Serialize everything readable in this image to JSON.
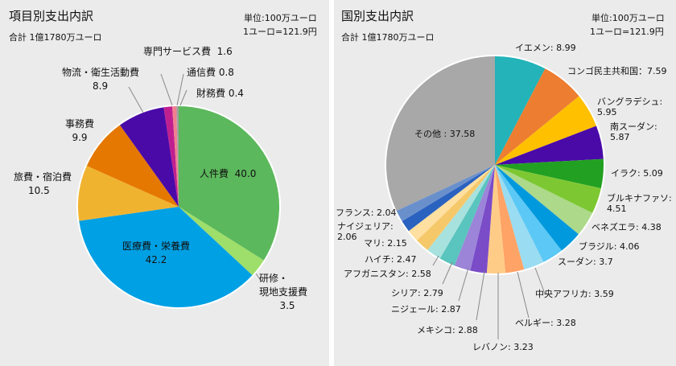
{
  "left": {
    "title": "項目別支出内訳",
    "total": "合計 1億1780万ユーロ",
    "unit": "単位:100万ユーロ",
    "rate": "1ユーロ=121.9円",
    "chart_data": {
      "type": "pie",
      "title": "項目別支出内訳",
      "start": "top",
      "direction": "clockwise",
      "slices": [
        {
          "label": "人件費",
          "value": 40.0,
          "color": "#5cb85c"
        },
        {
          "label": "研修・現地支援費",
          "value": 3.5,
          "color": "#9ede6a"
        },
        {
          "label": "医療費・栄養費",
          "value": 42.2,
          "color": "#00a0e4"
        },
        {
          "label": "旅費・宿泊費",
          "value": 10.5,
          "color": "#f0b330"
        },
        {
          "label": "事務費",
          "value": 9.9,
          "color": "#e57800"
        },
        {
          "label": "物流・衛生活動費",
          "value": 8.9,
          "color": "#4a0aa8"
        },
        {
          "label": "専門サービス費",
          "value": 1.6,
          "color": "#c0208f"
        },
        {
          "label": "通信費",
          "value": 0.8,
          "color": "#f08090"
        },
        {
          "label": "財務費",
          "value": 0.4,
          "color": "#a0a0a0"
        }
      ]
    },
    "labels": {
      "a": "人件費",
      "av": "40.0",
      "b1": "研修・",
      "b2": "現地支援費",
      "bv": "3.5",
      "c": "医療費・栄養費",
      "cv": "42.2",
      "d": "旅費・宿泊費",
      "dv": "10.5",
      "e": "事務費",
      "ev": "9.9",
      "f": "物流・衛生活動費",
      "fv": "8.9",
      "g": "専門サービス費",
      "gv": "1.6",
      "h": "通信費",
      "hv": "0.8",
      "i": "財務費",
      "iv": "0.4"
    }
  },
  "right": {
    "title": "国別支出内訳",
    "total": "合計 1億1780万ユーロ",
    "unit": "単位:100万ユーロ",
    "rate": "1ユーロ=121.9円",
    "chart_data": {
      "type": "pie",
      "title": "国別支出内訳",
      "start": "top",
      "direction": "clockwise",
      "slices": [
        {
          "label": "イエメン",
          "value": 8.99,
          "color": "#23b3b8"
        },
        {
          "label": "コンゴ民主共和国",
          "value": 7.59,
          "color": "#ed7d31"
        },
        {
          "label": "バングラデシュ",
          "value": 5.95,
          "color": "#ffc000"
        },
        {
          "label": "南スーダン",
          "value": 5.87,
          "color": "#4a0aa8"
        },
        {
          "label": "イラク",
          "value": 5.09,
          "color": "#22a022"
        },
        {
          "label": "ブルキナファソ",
          "value": 4.51,
          "color": "#7dc832"
        },
        {
          "label": "ベネズエラ",
          "value": 4.38,
          "color": "#acd98a"
        },
        {
          "label": "ブラジル",
          "value": 4.06,
          "color": "#0099dd"
        },
        {
          "label": "スーダン",
          "value": 3.7,
          "color": "#5bc8f5"
        },
        {
          "label": "中央アフリカ",
          "value": 3.59,
          "color": "#9adcf2"
        },
        {
          "label": "ベルギー",
          "value": 3.28,
          "color": "#ffa366"
        },
        {
          "label": "レバノン",
          "value": 3.23,
          "color": "#ffcc88"
        },
        {
          "label": "メキシコ",
          "value": 2.88,
          "color": "#7a4cc8"
        },
        {
          "label": "ニジェール",
          "value": 2.87,
          "color": "#9c84d8"
        },
        {
          "label": "シリア",
          "value": 2.79,
          "color": "#5ac4be"
        },
        {
          "label": "アフガニスタン",
          "value": 2.58,
          "color": "#a8e2de"
        },
        {
          "label": "ハイチ",
          "value": 2.47,
          "color": "#f5c86a"
        },
        {
          "label": "マリ",
          "value": 2.15,
          "color": "#ffe0a0"
        },
        {
          "label": "ナイジェリア",
          "value": 2.06,
          "color": "#2a62c0"
        },
        {
          "label": "フランス",
          "value": 2.04,
          "color": "#6a90cc"
        },
        {
          "label": "その他",
          "value": 37.58,
          "color": "#a8a8a8"
        }
      ]
    },
    "labels": [
      "イエメン: 8.99",
      "コンゴ民主共和国：7.59",
      "バングラデシュ:",
      "5.95",
      "南スーダン:",
      "5.87",
      "イラク: 5.09",
      "ブルキナファソ:",
      "4.51",
      "ベネズエラ: 4.38",
      "ブラジル: 4.06",
      "スーダン: 3.7",
      "中央アフリカ: 3.59",
      "ベルギー: 3.28",
      "レバノン: 3.23",
      "メキシコ: 2.88",
      "ニジェール: 2.87",
      "シリア: 2.79",
      "アフガニスタン: 2.58",
      "ハイチ: 2.47",
      "マリ: 2.15",
      "ナイジェリア:",
      "2.06",
      "フランス: 2.04",
      "その他 : 37.58"
    ]
  }
}
